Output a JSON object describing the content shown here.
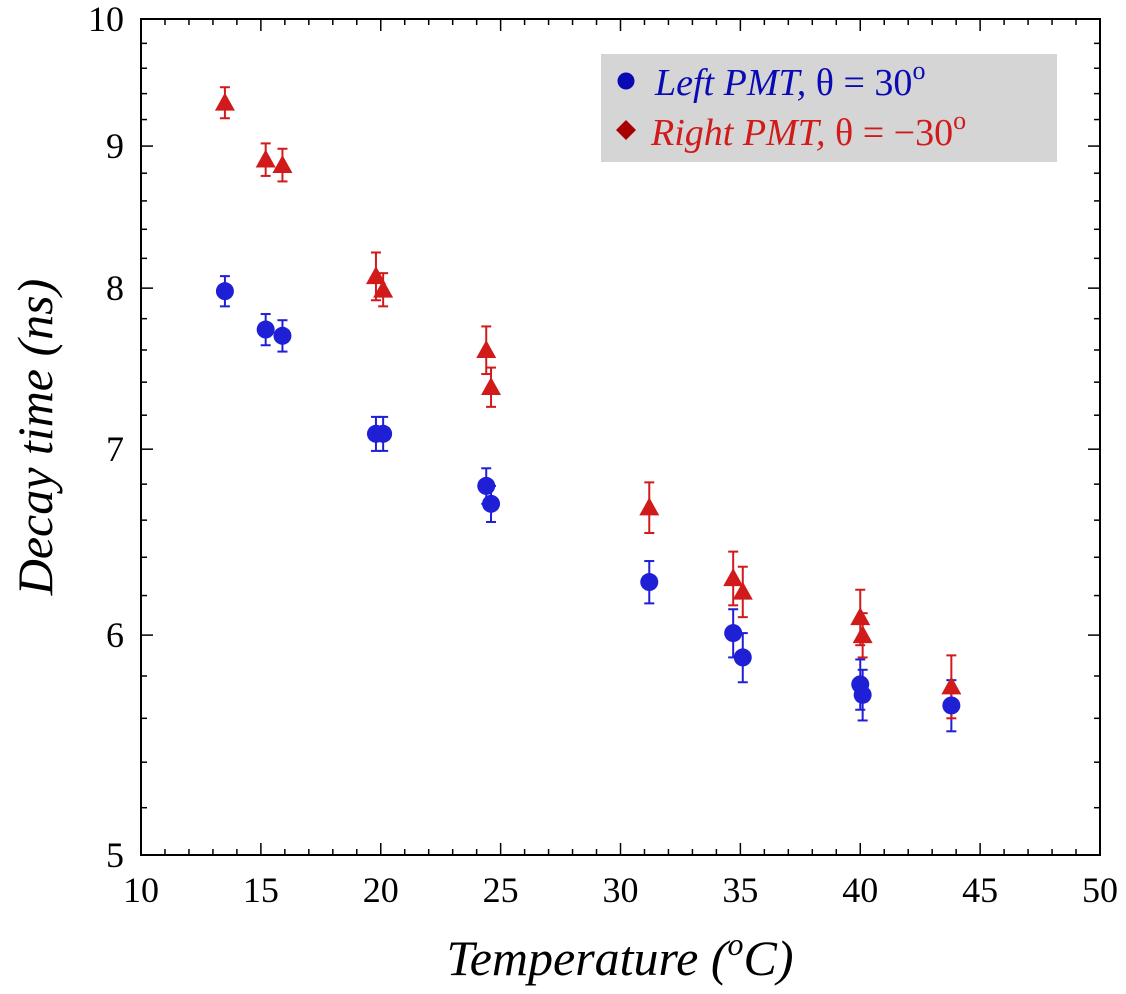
{
  "chart_data": {
    "type": "scatter",
    "xlabel": "Temperature (",
    "xlabel_sup": "o",
    "xlabel_unit": "C)",
    "ylabel": "Decay time (ns)",
    "xlim": [
      10,
      50
    ],
    "ylim": [
      5,
      10
    ],
    "yscale": "log",
    "x_ticks": [
      "10",
      "15",
      "20",
      "25",
      "30",
      "35",
      "40",
      "45",
      "50"
    ],
    "y_ticks": [
      "5",
      "6",
      "7",
      "8",
      "9",
      "10"
    ],
    "legend_placement": "top-right",
    "series": [
      {
        "name": "Left PMT, ",
        "name_math": "θ = 30",
        "name_sup": "o",
        "color": "#1f1fd6",
        "legend_marker_color": "#0a0ab4",
        "marker": "circle",
        "points": [
          {
            "x": 13.5,
            "y": 7.98,
            "err": 0.1
          },
          {
            "x": 15.2,
            "y": 7.73,
            "err": 0.1
          },
          {
            "x": 15.9,
            "y": 7.69,
            "err": 0.1
          },
          {
            "x": 19.8,
            "y": 7.09,
            "err": 0.1
          },
          {
            "x": 20.1,
            "y": 7.09,
            "err": 0.1
          },
          {
            "x": 24.4,
            "y": 6.79,
            "err": 0.1
          },
          {
            "x": 24.6,
            "y": 6.69,
            "err": 0.1
          },
          {
            "x": 31.2,
            "y": 6.27,
            "err": 0.11
          },
          {
            "x": 34.7,
            "y": 6.01,
            "err": 0.12
          },
          {
            "x": 35.1,
            "y": 5.89,
            "err": 0.12
          },
          {
            "x": 40.0,
            "y": 5.76,
            "err": 0.12
          },
          {
            "x": 40.1,
            "y": 5.71,
            "err": 0.12
          },
          {
            "x": 43.8,
            "y": 5.66,
            "err": 0.12
          }
        ]
      },
      {
        "name": "Right PMT, ",
        "name_math": "θ = −30",
        "name_sup": "o",
        "color": "#d11a1a",
        "legend_marker_color": "#a80000",
        "marker": "triangle",
        "points": [
          {
            "x": 13.5,
            "y": 9.33,
            "err": 0.12
          },
          {
            "x": 15.2,
            "y": 8.9,
            "err": 0.12
          },
          {
            "x": 15.9,
            "y": 8.86,
            "err": 0.12
          },
          {
            "x": 19.8,
            "y": 8.08,
            "err": 0.16
          },
          {
            "x": 20.1,
            "y": 7.99,
            "err": 0.11
          },
          {
            "x": 24.4,
            "y": 7.6,
            "err": 0.15
          },
          {
            "x": 24.6,
            "y": 7.37,
            "err": 0.12
          },
          {
            "x": 31.2,
            "y": 6.67,
            "err": 0.14
          },
          {
            "x": 34.7,
            "y": 6.29,
            "err": 0.14
          },
          {
            "x": 35.1,
            "y": 6.22,
            "err": 0.13
          },
          {
            "x": 40.0,
            "y": 6.09,
            "err": 0.14
          },
          {
            "x": 40.1,
            "y": 6.0,
            "err": 0.11
          },
          {
            "x": 43.8,
            "y": 5.75,
            "err": 0.15
          }
        ]
      }
    ]
  }
}
